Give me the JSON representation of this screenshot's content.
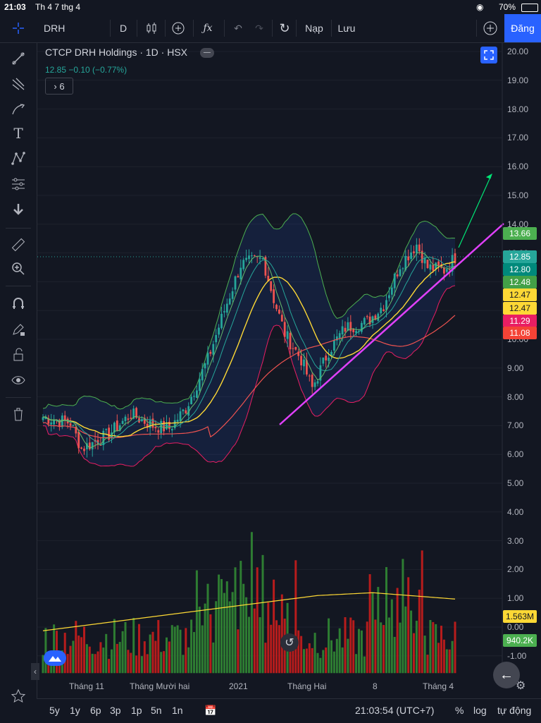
{
  "status": {
    "time": "21:03",
    "date": "Th 4 7 thg 4",
    "battery": "70%"
  },
  "toolbar": {
    "symbol": "DRH",
    "interval": "D",
    "refresh_label": "Nạp",
    "save_label": "Lưu",
    "publish_label": "Đăng"
  },
  "legend": {
    "title": "CTCP DRH Holdings · 1D · HSX",
    "price_line": "12.85  −0.10 (−0.77%)",
    "indicators_count": "6"
  },
  "price_axis": [
    "20.00",
    "19.00",
    "18.00",
    "17.00",
    "16.00",
    "15.00",
    "14.00",
    "13.00",
    "12.00",
    "11.00",
    "10.00",
    "9.00",
    "8.00",
    "7.00",
    "6.00",
    "5.00",
    "4.00",
    "3.00",
    "2.00",
    "1.00",
    "0.00",
    "-1.00"
  ],
  "price_tags": [
    {
      "label": "13.66",
      "color": "#4caf50"
    },
    {
      "label": "12.85",
      "color": "#26a69a"
    },
    {
      "label": "12.80",
      "color": "#00897b"
    },
    {
      "label": "12.48",
      "color": "#43a047"
    },
    {
      "label": "12.47",
      "color": "#fdd835"
    },
    {
      "label": "12.47",
      "color": "#fdd835"
    },
    {
      "label": "11.29",
      "color": "#e91e63"
    },
    {
      "label": "11.08",
      "color": "#f44336"
    },
    {
      "label": "1.563M",
      "color": "#fdd835"
    },
    {
      "label": "940.2K",
      "color": "#4caf50"
    }
  ],
  "time_axis": [
    "Tháng 11",
    "Tháng Mười hai",
    "2021",
    "Tháng Hai",
    "8",
    "Tháng 4"
  ],
  "bottom": {
    "ranges": [
      "5y",
      "1y",
      "6p",
      "3p",
      "1p",
      "5n",
      "1n"
    ],
    "clock": "21:03:54 (UTC+7)",
    "pct": "%",
    "log": "log",
    "auto": "tự động"
  },
  "colors": {
    "up": "#26a69a",
    "down": "#ef5350",
    "trendline": "#e040fb",
    "arrow": "#00e676",
    "ma_yellow": "#fdd835",
    "ma_red": "#ef5350",
    "bb": "#4caf50"
  },
  "chart_data": {
    "type": "candlestick",
    "title": "CTCP DRH Holdings · 1D · HSX",
    "last_close": 12.85,
    "ylim": [
      -1,
      20
    ],
    "volume_ma": 1563000,
    "last_volume": 940200
  }
}
